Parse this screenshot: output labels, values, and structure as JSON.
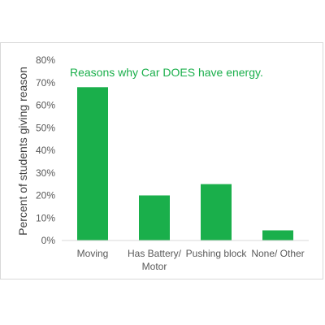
{
  "chart_data": {
    "type": "bar",
    "title": "Reasons why Car DOES have energy.",
    "ylabel": "Percent of students giving reason",
    "xlabel": "",
    "categories": [
      [
        "Moving"
      ],
      [
        "Has Battery/",
        "Motor"
      ],
      [
        "Pushing block"
      ],
      [
        "None/ Other"
      ]
    ],
    "values": [
      68,
      20,
      25,
      4.5
    ],
    "ylim": [
      0,
      80
    ],
    "yticks": [
      0,
      10,
      20,
      30,
      40,
      50,
      60,
      70,
      80
    ],
    "ytick_labels": [
      "0%",
      "10%",
      "20%",
      "30%",
      "40%",
      "50%",
      "60%",
      "70%",
      "80%"
    ],
    "bar_color": "#1aaf4b",
    "title_color": "#1aaf4b",
    "grid": false,
    "legend": "none"
  }
}
